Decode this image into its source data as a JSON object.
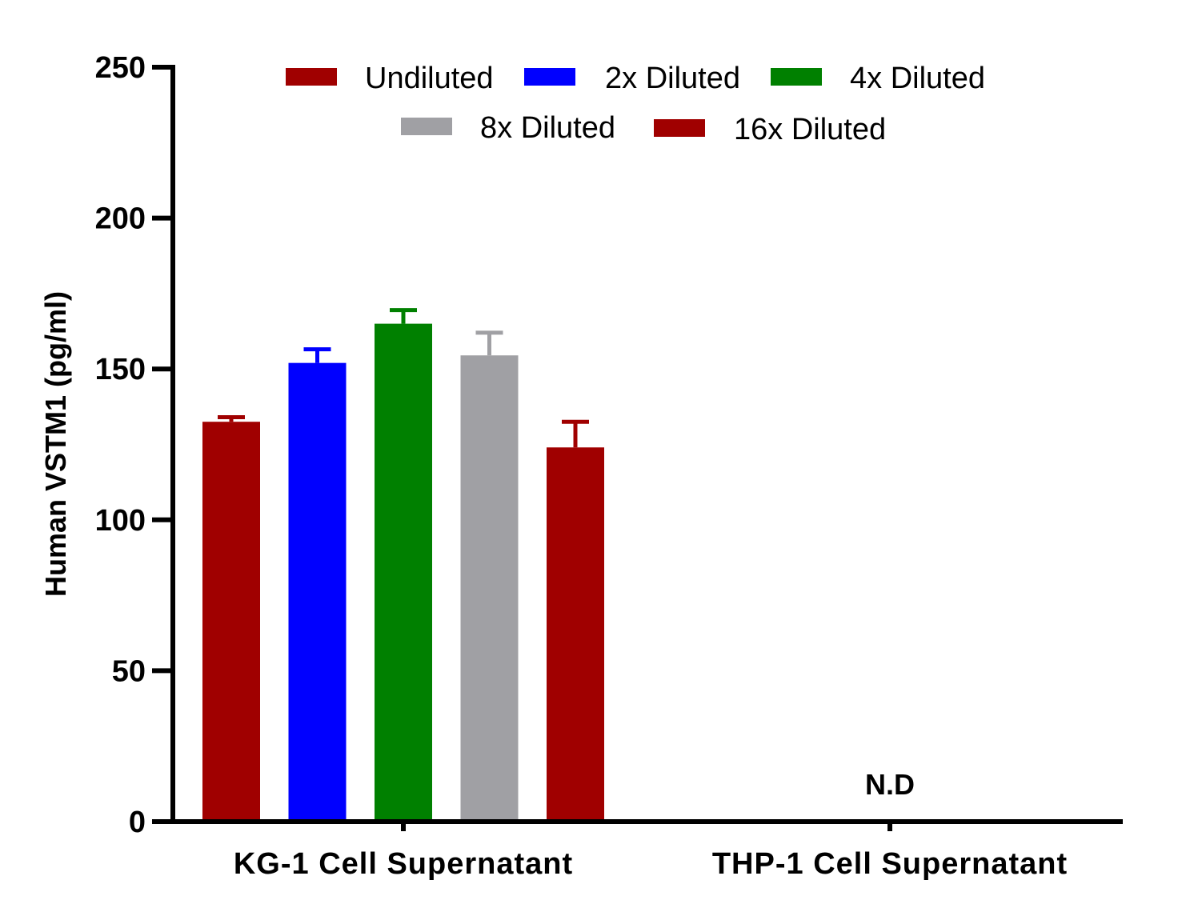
{
  "chart_data": {
    "type": "bar",
    "title": "",
    "ylabel": "Human VSTM1 (pg/ml)",
    "xlabel": "",
    "ylim": [
      0,
      250
    ],
    "yticks": [
      0,
      50,
      100,
      150,
      200,
      250
    ],
    "categories": [
      "KG-1 Cell Supernatant",
      "THP-1 Cell Supernatant"
    ],
    "series": [
      {
        "name": "Undiluted",
        "color": "#a00000",
        "values": [
          132.5,
          null
        ],
        "errors": [
          1.5,
          null
        ]
      },
      {
        "name": "2x Diluted",
        "color": "#0000ff",
        "values": [
          152,
          null
        ],
        "errors": [
          4.5,
          null
        ]
      },
      {
        "name": "4x Diluted",
        "color": "#008000",
        "values": [
          165,
          null
        ],
        "errors": [
          4.5,
          null
        ]
      },
      {
        "name": "8x Diluted",
        "color": "#a0a0a4",
        "values": [
          154.5,
          null
        ],
        "errors": [
          7.5,
          null
        ]
      },
      {
        "name": "16x Diluted",
        "color": "#a00000",
        "values": [
          124,
          null
        ],
        "errors": [
          8.5,
          null
        ]
      }
    ],
    "annotations": [
      {
        "category": "THP-1 Cell Supernatant",
        "text": "N.D"
      }
    ],
    "legend_position": "top-center",
    "grid": false
  }
}
